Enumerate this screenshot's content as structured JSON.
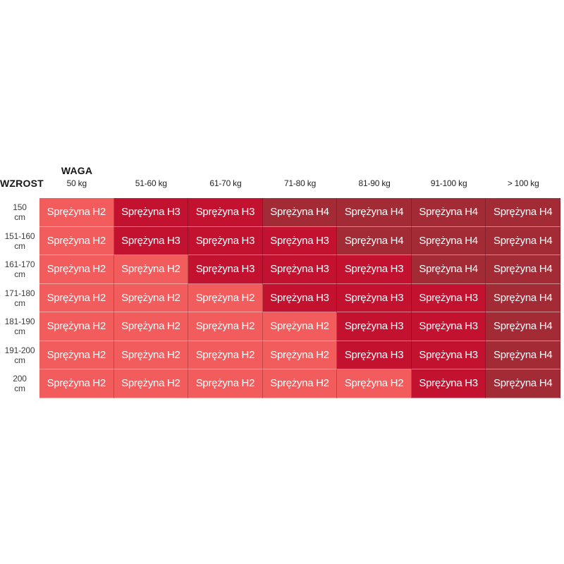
{
  "chart_data": {
    "type": "heatmap",
    "title": "",
    "x_axis_label": "WAGA",
    "y_axis_label": "WZROST",
    "x_categories": [
      "50 kg",
      "51-60 kg",
      "61-70 kg",
      "71-80 kg",
      "81-90 kg",
      "91-100 kg",
      "> 100 kg"
    ],
    "y_categories": [
      "150 cm",
      "151-160 cm",
      "161-170 cm",
      "171-180 cm",
      "181-190 cm",
      "191-200 cm",
      "200 cm"
    ],
    "values": [
      [
        "Sprężyna H2",
        "Sprężyna H3",
        "Sprężyna H3",
        "Sprężyna H4",
        "Sprężyna H4",
        "Sprężyna H4",
        "Sprężyna H4"
      ],
      [
        "Sprężyna H2",
        "Sprężyna H3",
        "Sprężyna H3",
        "Sprężyna H3",
        "Sprężyna H4",
        "Sprężyna H4",
        "Sprężyna H4"
      ],
      [
        "Sprężyna H2",
        "Sprężyna H2",
        "Sprężyna H3",
        "Sprężyna H3",
        "Sprężyna H3",
        "Sprężyna H4",
        "Sprężyna H4"
      ],
      [
        "Sprężyna H2",
        "Sprężyna H2",
        "Sprężyna H2",
        "Sprężyna H3",
        "Sprężyna H3",
        "Sprężyna H3",
        "Sprężyna H4"
      ],
      [
        "Sprężyna H2",
        "Sprężyna H2",
        "Sprężyna H2",
        "Sprężyna H2",
        "Sprężyna H3",
        "Sprężyna H3",
        "Sprężyna H4"
      ],
      [
        "Sprężyna H2",
        "Sprężyna H2",
        "Sprężyna H2",
        "Sprężyna H2",
        "Sprężyna H3",
        "Sprężyna H3",
        "Sprężyna H4"
      ],
      [
        "Sprężyna H2",
        "Sprężyna H2",
        "Sprężyna H2",
        "Sprężyna H2",
        "Sprężyna H2",
        "Sprężyna H3",
        "Sprężyna H4"
      ]
    ],
    "levels": [
      [
        "H2",
        "H3",
        "H3",
        "H4",
        "H4",
        "H4",
        "H4"
      ],
      [
        "H2",
        "H3",
        "H3",
        "H3",
        "H4",
        "H4",
        "H4"
      ],
      [
        "H2",
        "H2",
        "H3",
        "H3",
        "H3",
        "H4",
        "H4"
      ],
      [
        "H2",
        "H2",
        "H2",
        "H3",
        "H3",
        "H3",
        "H4"
      ],
      [
        "H2",
        "H2",
        "H2",
        "H2",
        "H3",
        "H3",
        "H4"
      ],
      [
        "H2",
        "H2",
        "H2",
        "H2",
        "H3",
        "H3",
        "H4"
      ],
      [
        "H2",
        "H2",
        "H2",
        "H2",
        "H2",
        "H3",
        "H4"
      ]
    ],
    "color_map": {
      "H2": "#f25c5c",
      "H3": "#c3122f",
      "H4": "#a32b36"
    },
    "legend": "none",
    "grid": "thin cell borders",
    "layout": "matrix lookup table, weight columns across top, height rows down left"
  }
}
